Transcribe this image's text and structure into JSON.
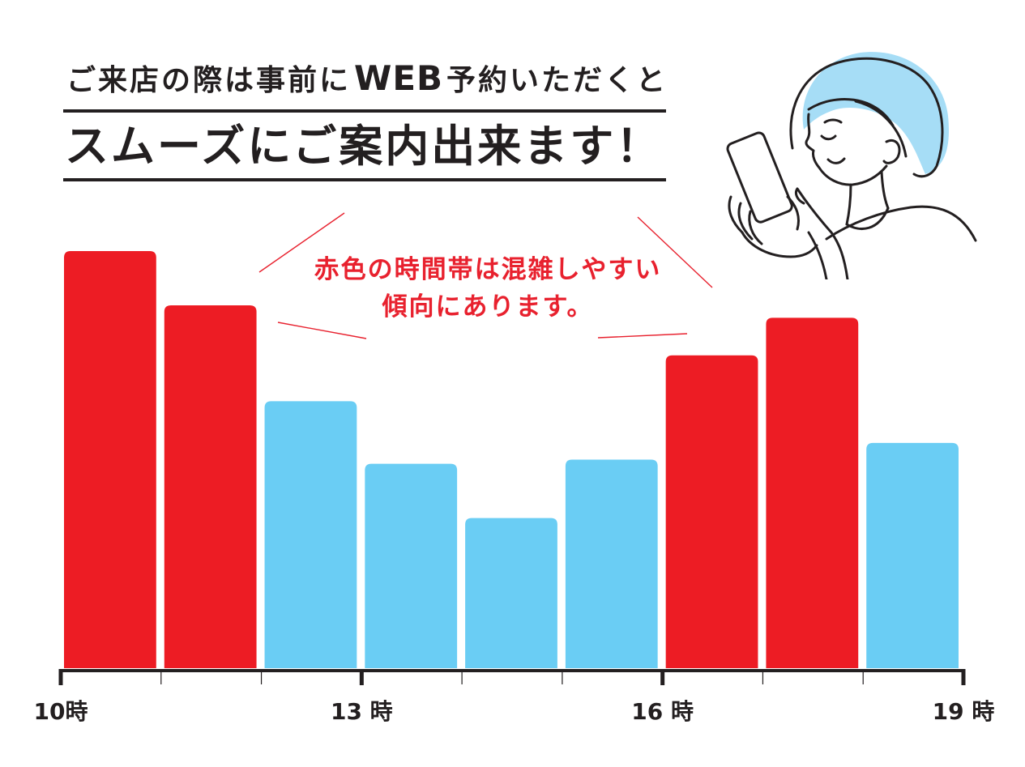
{
  "header": {
    "line1_pre": "ご来店の際は事前に",
    "line1_emph": "WEB",
    "line1_post": "予約いただくと",
    "line2": "スムーズにご案内出来ます！"
  },
  "illustration": {
    "icon": "woman-with-smartphone-icon"
  },
  "colors": {
    "text": "#231F20",
    "callout": "#E8212E",
    "congested": "#ED1C24",
    "normal": "#6ACDF4",
    "hair": "#A6DDF6"
  },
  "chart_data": {
    "type": "bar",
    "x": [
      10,
      11,
      12,
      13,
      14,
      15,
      16,
      17,
      18
    ],
    "values": [
      100,
      87,
      64,
      49,
      36,
      50,
      75,
      84,
      54
    ],
    "colors": [
      "#ED1C24",
      "#ED1C24",
      "#6ACDF4",
      "#6ACDF4",
      "#6ACDF4",
      "#6ACDF4",
      "#ED1C24",
      "#ED1C24",
      "#6ACDF4"
    ],
    "xlim": [
      10,
      19
    ],
    "ylim": [
      0,
      100
    ],
    "major_ticks": [
      {
        "x": 10,
        "label": "10時"
      },
      {
        "x": 13,
        "label": "13 時"
      },
      {
        "x": 16,
        "label": "16 時"
      },
      {
        "x": 19,
        "label": "19 時"
      }
    ],
    "minor_ticks": [
      11,
      12,
      14,
      15,
      17,
      18
    ],
    "annotations": [
      "赤色の時間帯は混雑しやすい",
      "傾向にあります。"
    ],
    "grid": false
  }
}
